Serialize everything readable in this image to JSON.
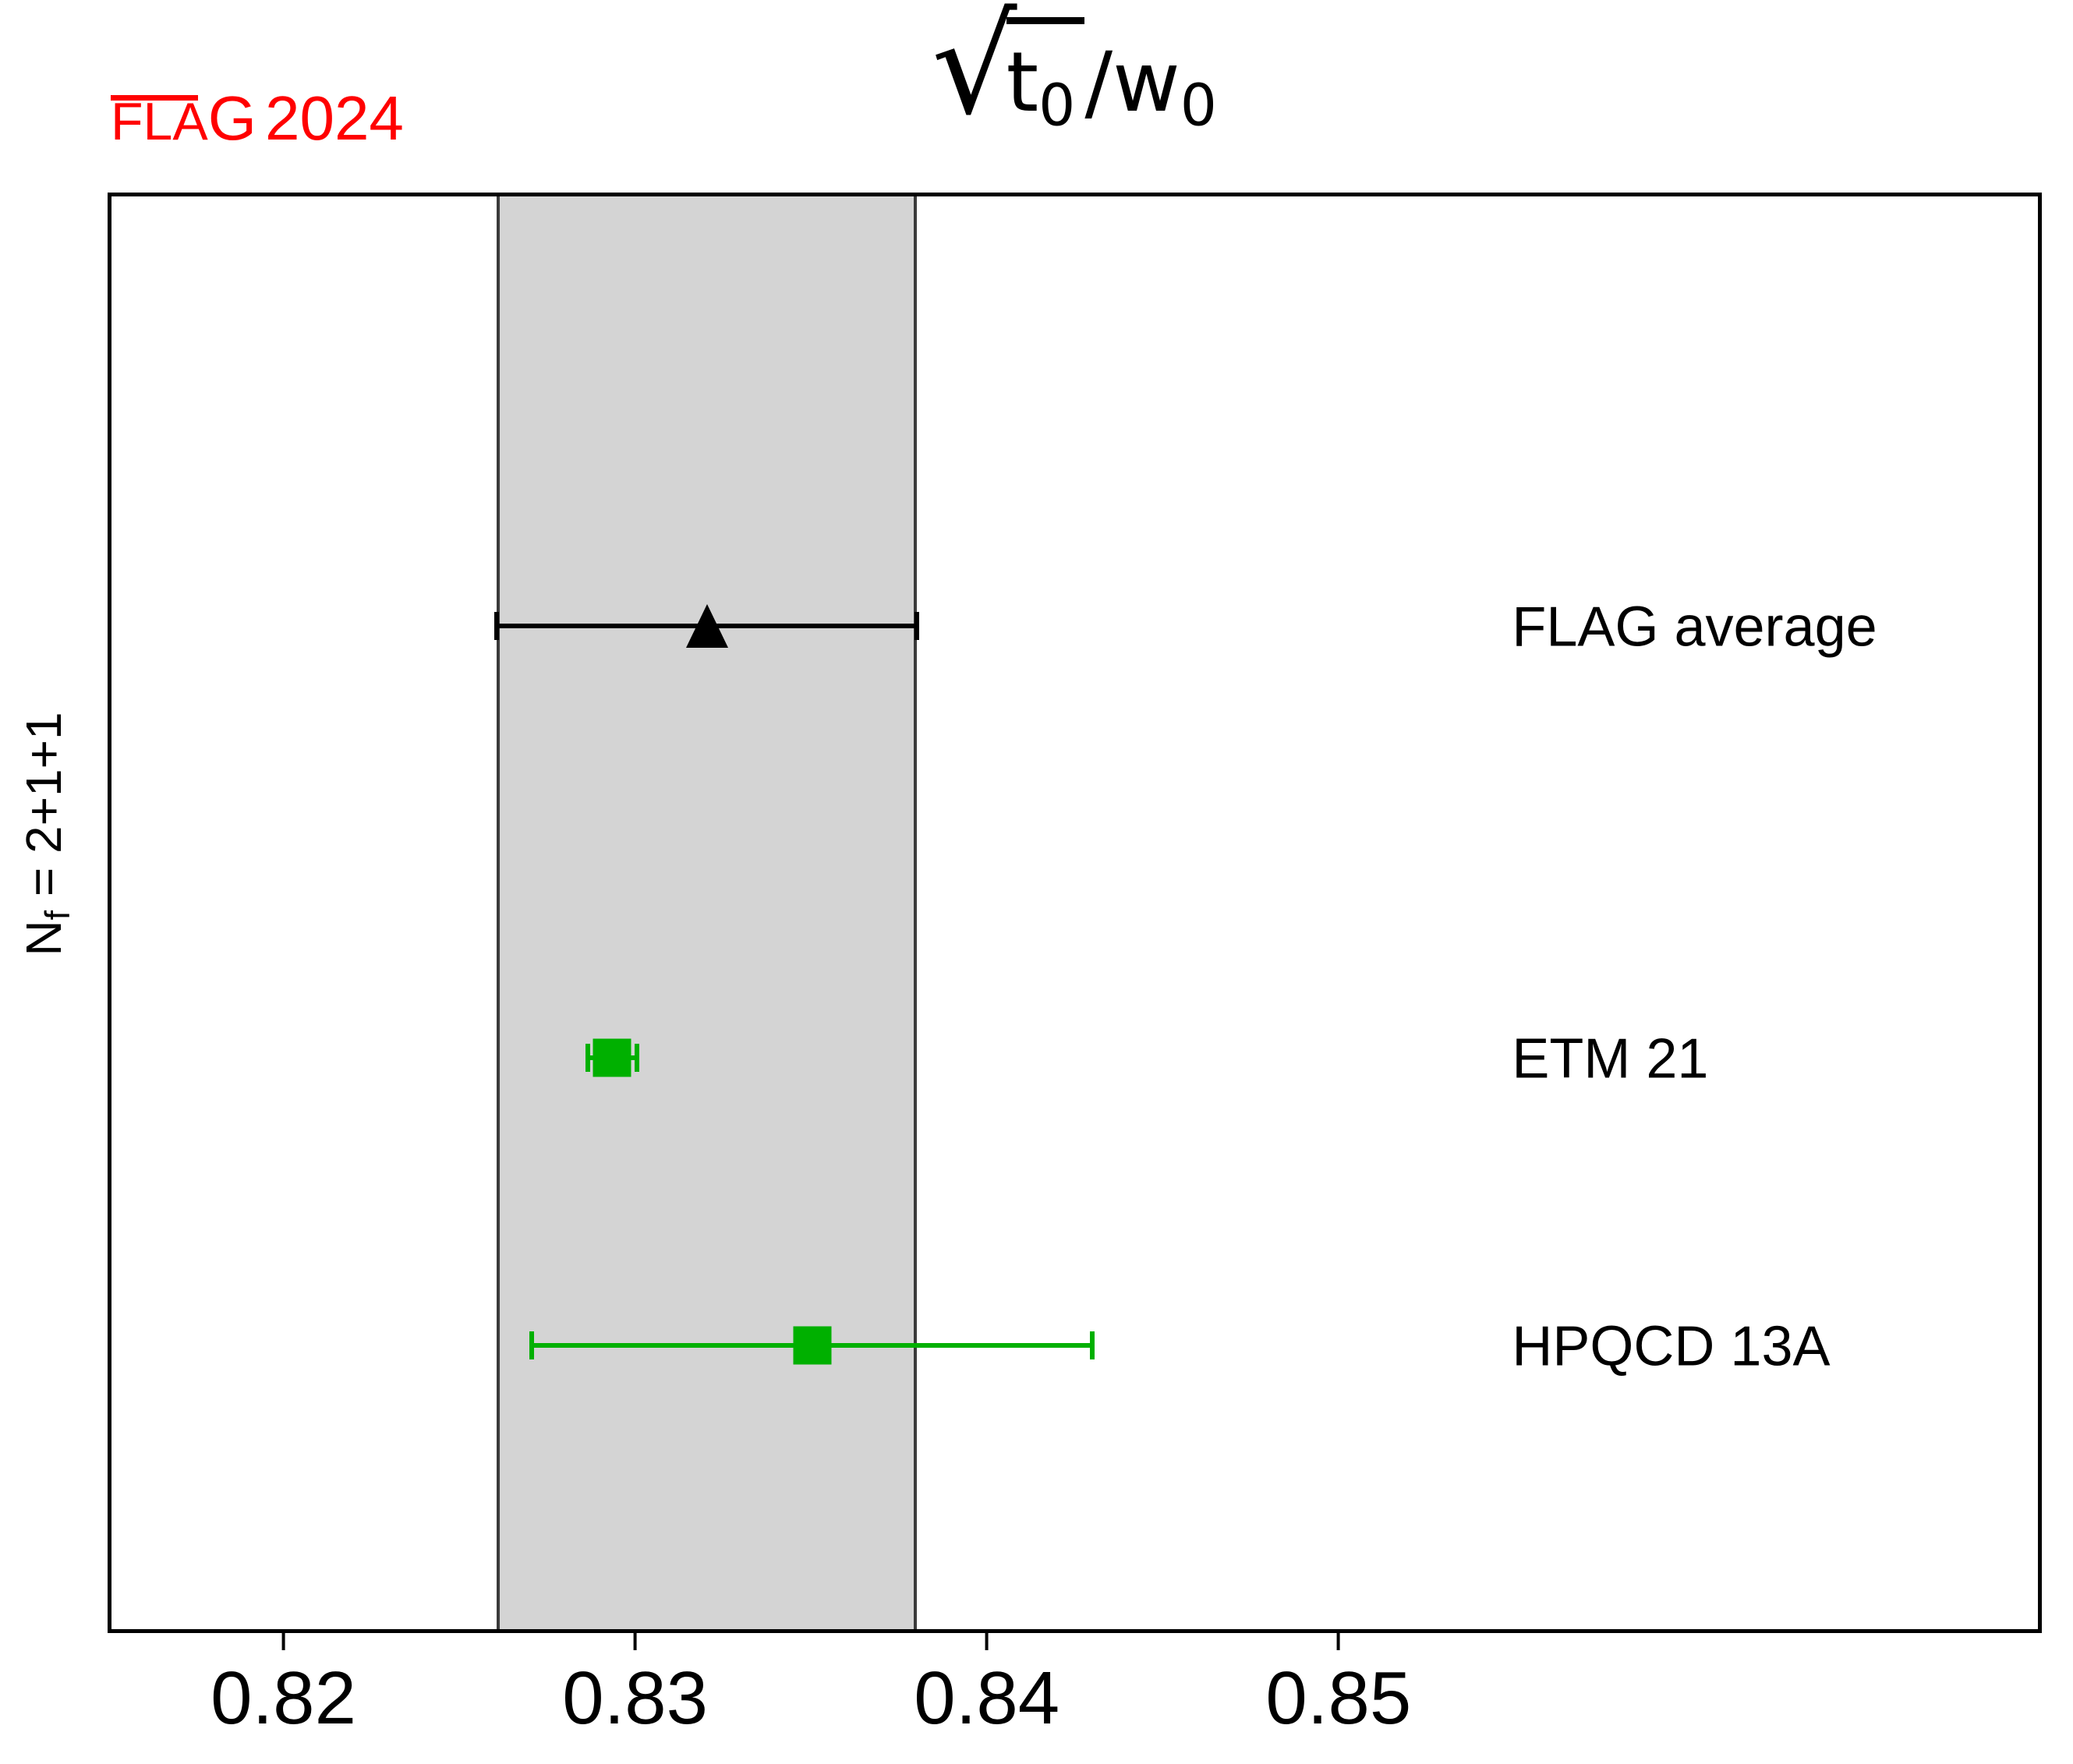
{
  "logo": {
    "fla": "FLA",
    "g": "G",
    "year": "2024",
    "color": "#ff0000"
  },
  "title": {
    "sqrt": "√",
    "radicand_base": "t",
    "radicand_sub": "0",
    "slash": "/",
    "denom_base": "w",
    "denom_sub": "0"
  },
  "ylabel_parts": {
    "base": "N",
    "sub": "f",
    "rest": " = 2+1+1"
  },
  "chart_data": {
    "type": "scatter",
    "title": "sqrt(t0)/w0",
    "xlabel": "",
    "ylabel": "Nf = 2+1+1",
    "xlim": [
      0.815,
      0.87
    ],
    "xticks": [
      0.82,
      0.83,
      0.84,
      0.85
    ],
    "xtick_labels": [
      "0.82",
      "0.83",
      "0.84",
      "0.85"
    ],
    "grid": false,
    "legend_position": "none",
    "band": {
      "xmin": 0.826,
      "xmax": 0.838,
      "fill_color": "#d4d4d4",
      "edge_color": "#3a3a3a",
      "represents": "FLAG average uncertainty band"
    },
    "series": [
      {
        "name": "FLAG average",
        "value": 0.832,
        "err": 0.006,
        "marker": "triangle-up",
        "color": "#000000",
        "row_frac": 0.3
      },
      {
        "name": "ETM 21",
        "value": 0.8293,
        "err": 0.0007,
        "marker": "square",
        "color": "#00b000",
        "row_frac": 0.601
      },
      {
        "name": "HPQCD 13A",
        "value": 0.835,
        "err": 0.008,
        "marker": "square",
        "color": "#00b000",
        "row_frac": 0.802
      }
    ],
    "label_x_frac": 0.727
  }
}
